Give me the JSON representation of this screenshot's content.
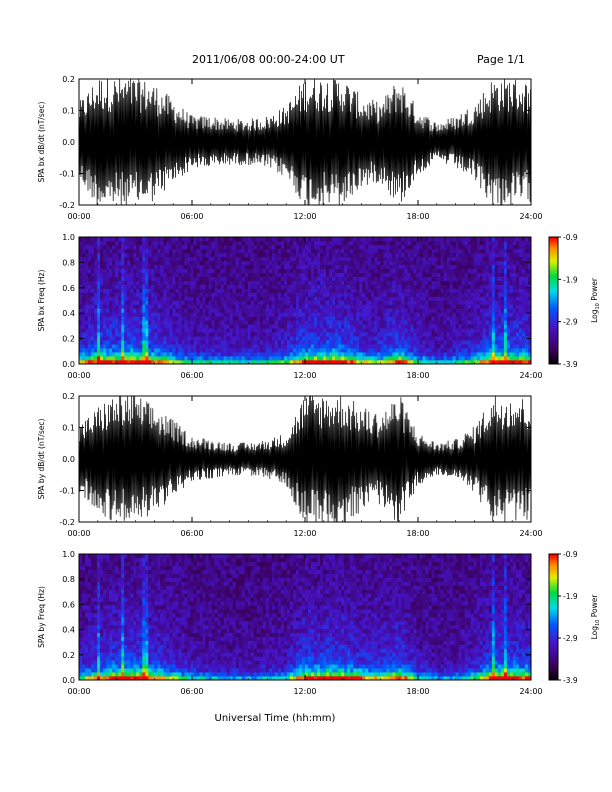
{
  "header": {
    "title": "2011/06/08  00:00-24:00 UT",
    "page": "Page 1/1"
  },
  "xlabel": "Universal Time (hh:mm)",
  "colorbar": {
    "label_prefix": "Log",
    "label_sub": "10",
    "label_suffix": " Power",
    "ticks": [
      "-0.9",
      "-1.9",
      "-2.9",
      "-3.9"
    ]
  },
  "chart_data": [
    {
      "type": "line",
      "ylabel": "SPA bx dB/dt (nT/sec)",
      "xlim": [
        0,
        24
      ],
      "ylim": [
        -0.2,
        0.2
      ],
      "xticks": [
        "00:00",
        "06:00",
        "12:00",
        "18:00",
        "24:00"
      ],
      "yticks": [
        "-0.2",
        "-0.1",
        "0.0",
        "0.1",
        "0.2"
      ],
      "x": [
        0,
        1,
        2,
        3,
        4,
        5,
        6,
        7,
        8,
        9,
        10,
        11,
        12,
        13,
        14,
        15,
        16,
        17,
        18,
        19,
        20,
        21,
        22,
        23,
        24
      ],
      "amplitude": [
        0.12,
        0.2,
        0.2,
        0.2,
        0.18,
        0.13,
        0.08,
        0.08,
        0.07,
        0.07,
        0.08,
        0.11,
        0.2,
        0.2,
        0.2,
        0.14,
        0.12,
        0.2,
        0.1,
        0.06,
        0.08,
        0.12,
        0.2,
        0.2,
        0.18
      ]
    },
    {
      "type": "heatmap",
      "ylabel": "SPA bx Freq (Hz)",
      "xlim": [
        0,
        24
      ],
      "ylim": [
        0.0,
        1.0
      ],
      "xticks": [
        "00:00",
        "06:00",
        "12:00",
        "18:00",
        "24:00"
      ],
      "yticks": [
        "0.0",
        "0.2",
        "0.4",
        "0.6",
        "0.8",
        "1.0"
      ],
      "zlim": [
        -3.9,
        -0.9
      ]
    },
    {
      "type": "line",
      "ylabel": "SPA by dB/dt (nT/sec)",
      "xlim": [
        0,
        24
      ],
      "ylim": [
        -0.2,
        0.2
      ],
      "xticks": [
        "00:00",
        "06:00",
        "12:00",
        "18:00",
        "24:00"
      ],
      "yticks": [
        "-0.2",
        "-0.1",
        "0.0",
        "0.1",
        "0.2"
      ],
      "x": [
        0,
        1,
        2,
        3,
        4,
        5,
        6,
        7,
        8,
        9,
        10,
        11,
        12,
        13,
        14,
        15,
        16,
        17,
        18,
        19,
        20,
        21,
        22,
        23,
        24
      ],
      "amplitude": [
        0.1,
        0.16,
        0.2,
        0.2,
        0.16,
        0.12,
        0.07,
        0.06,
        0.05,
        0.05,
        0.06,
        0.08,
        0.2,
        0.2,
        0.2,
        0.16,
        0.14,
        0.2,
        0.08,
        0.05,
        0.06,
        0.1,
        0.2,
        0.2,
        0.18
      ]
    },
    {
      "type": "heatmap",
      "ylabel": "SPA by Freq (Hz)",
      "xlim": [
        0,
        24
      ],
      "ylim": [
        0.0,
        1.0
      ],
      "xticks": [
        "00:00",
        "06:00",
        "12:00",
        "18:00",
        "24:00"
      ],
      "yticks": [
        "0.0",
        "0.2",
        "0.4",
        "0.6",
        "0.8",
        "1.0"
      ],
      "zlim": [
        -3.9,
        -0.9
      ]
    }
  ]
}
